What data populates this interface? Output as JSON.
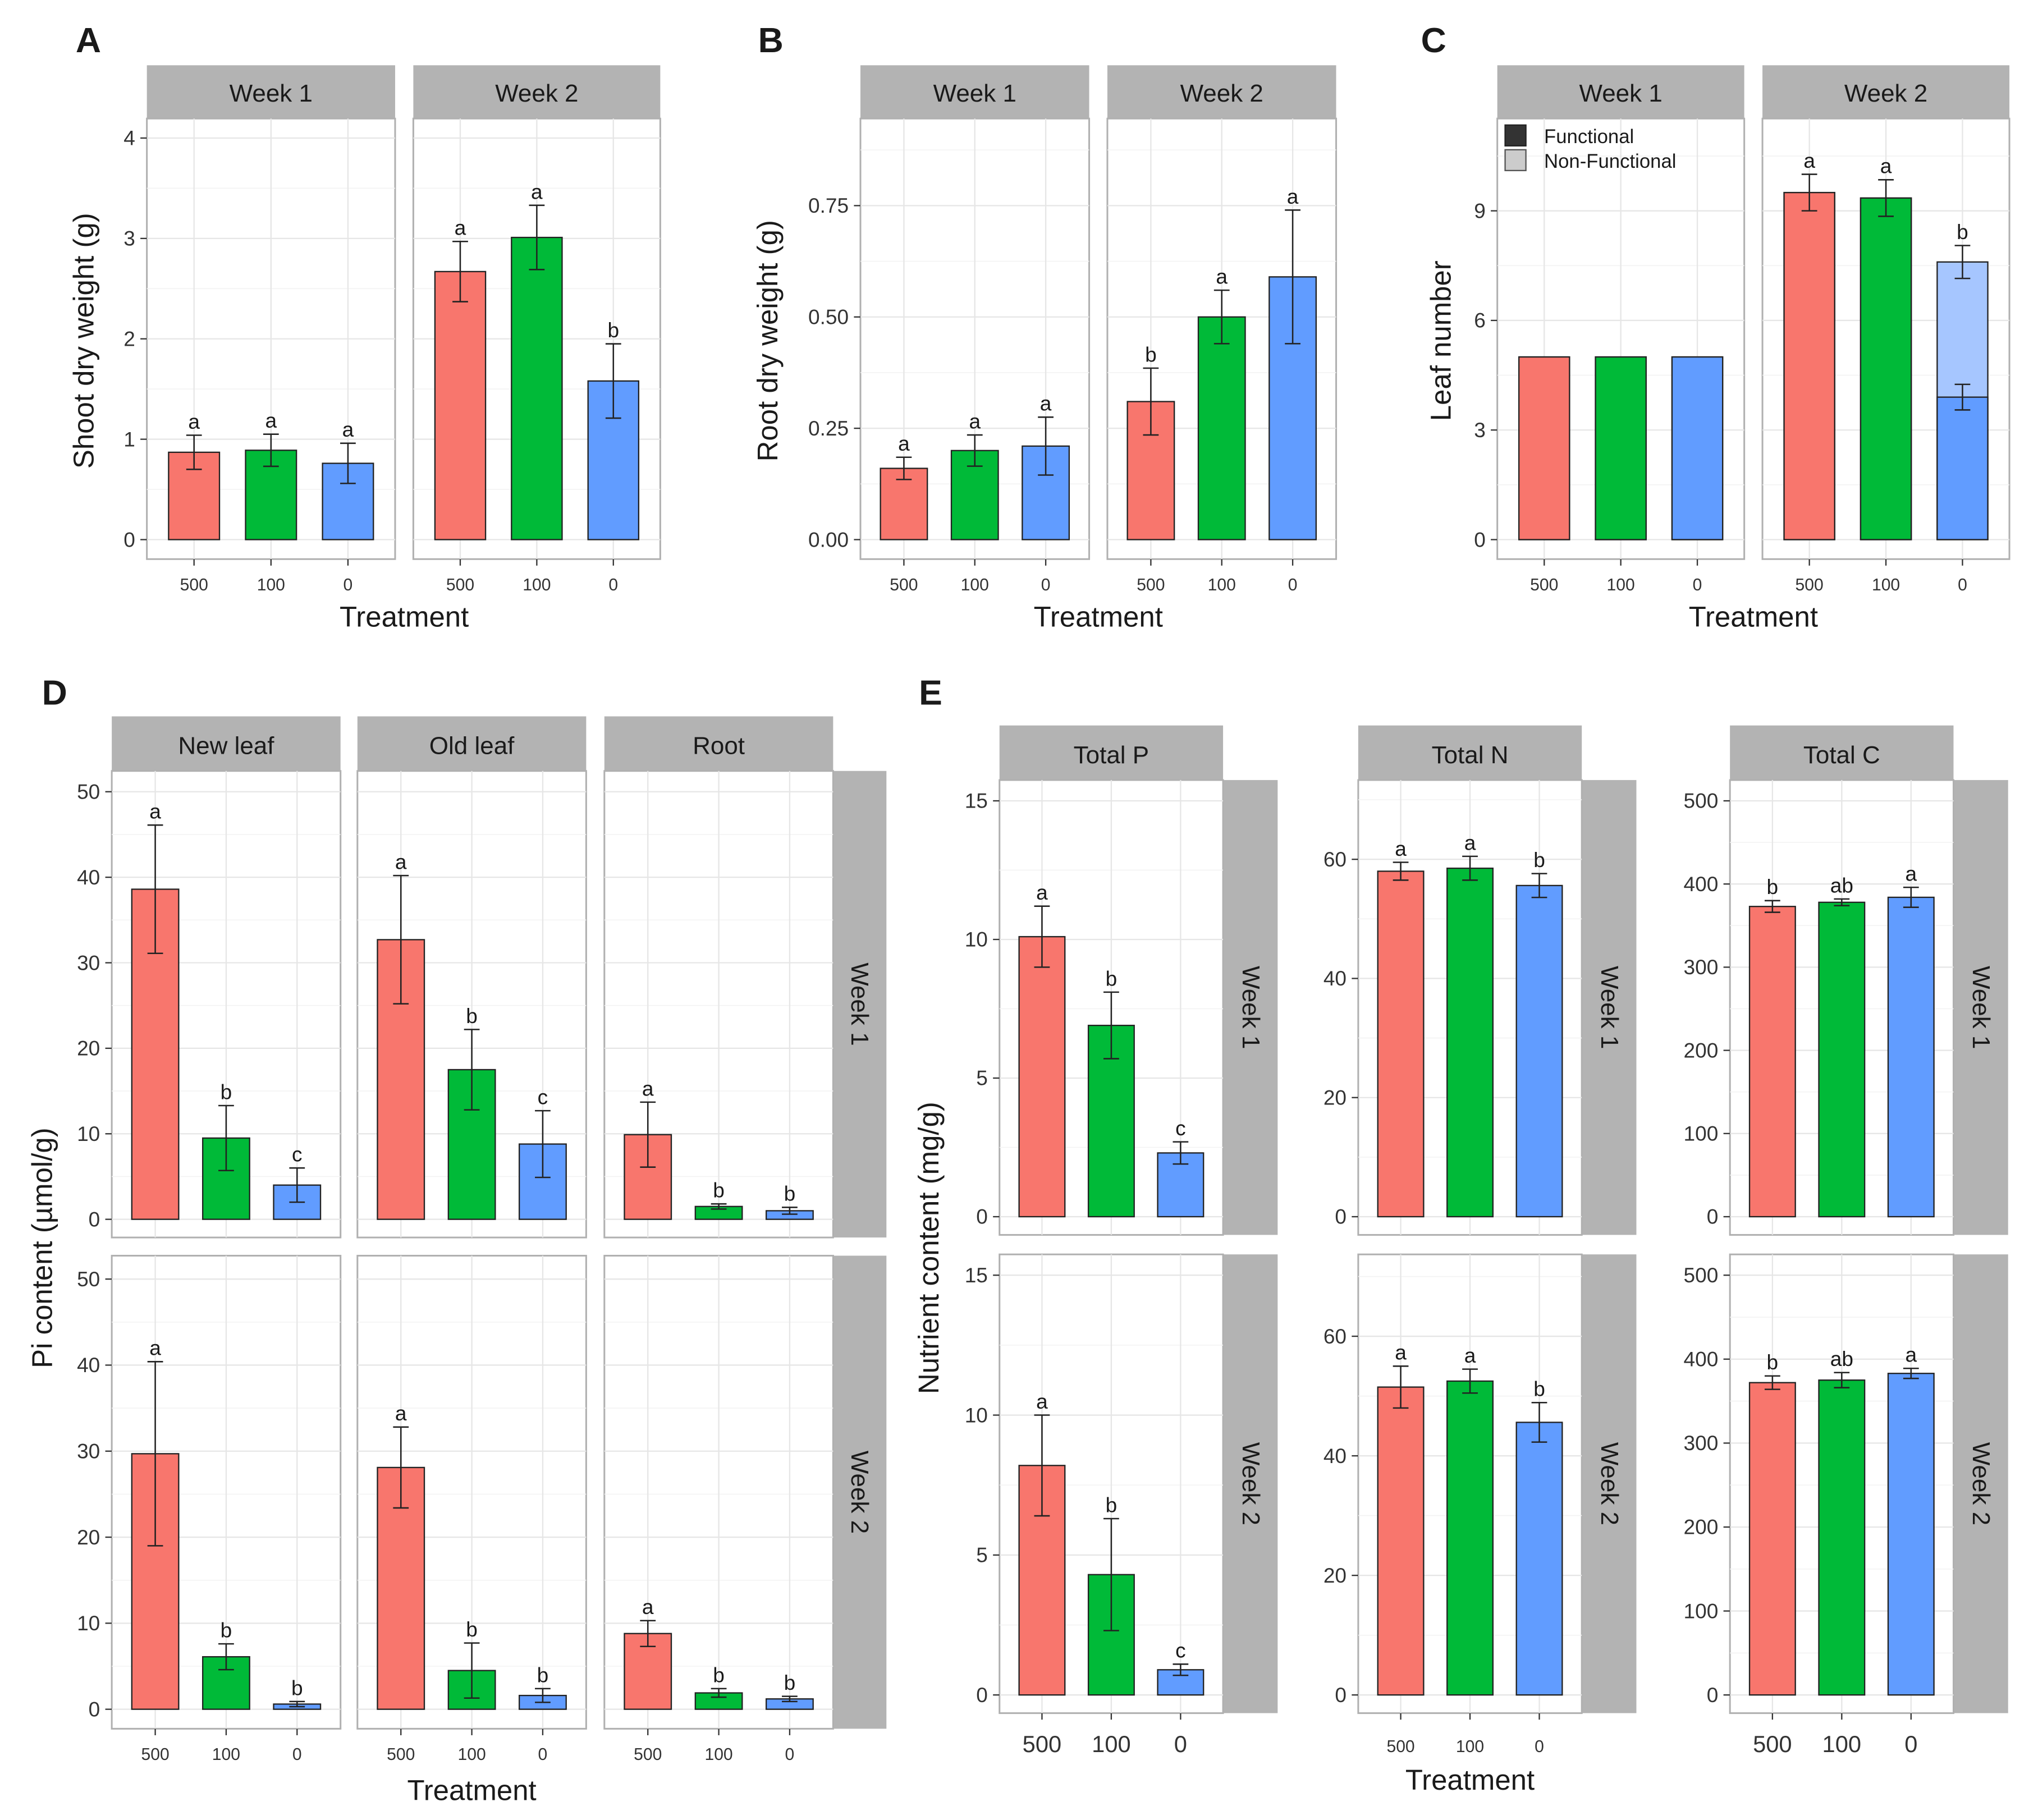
{
  "colors": [
    "#F8766D",
    "#00BA38",
    "#619CFF"
  ],
  "nonfunctional_color": "#A6C6FF",
  "chart_data": [
    {
      "panel": "A",
      "type": "bar",
      "ylabel": "Shoot dry weight (g)",
      "xlabel": "Treatment",
      "categories": [
        "500",
        "100",
        "0"
      ],
      "ylim": [
        0,
        4.1
      ],
      "yticks": [
        0,
        1,
        2,
        3,
        4
      ],
      "ytick_labels": [
        "0",
        "1",
        "2",
        "3",
        "4"
      ],
      "facets": [
        {
          "label": "Week 1",
          "values": [
            0.87,
            0.89,
            0.76
          ],
          "errors": [
            0.17,
            0.16,
            0.2
          ],
          "letters": [
            "a",
            "a",
            "a"
          ]
        },
        {
          "label": "Week 2",
          "values": [
            2.67,
            3.01,
            1.58
          ],
          "errors": [
            0.3,
            0.32,
            0.37
          ],
          "letters": [
            "a",
            "a",
            "b"
          ]
        }
      ]
    },
    {
      "panel": "B",
      "type": "bar",
      "ylabel": "Root dry weight (g)",
      "xlabel": "Treatment",
      "categories": [
        "500",
        "100",
        "0"
      ],
      "ylim": [
        0,
        0.95
      ],
      "yticks": [
        0,
        0.25,
        0.5,
        0.75
      ],
      "ytick_labels": [
        "0.00",
        "0.25",
        "0.50",
        "0.75"
      ],
      "facets": [
        {
          "label": "Week 1",
          "values": [
            0.16,
            0.2,
            0.21
          ],
          "errors": [
            0.025,
            0.035,
            0.065
          ],
          "letters": [
            "a",
            "a",
            "a"
          ]
        },
        {
          "label": "Week 2",
          "values": [
            0.31,
            0.5,
            0.59
          ],
          "errors": [
            0.075,
            0.06,
            0.15
          ],
          "letters": [
            "b",
            "a",
            "a"
          ]
        }
      ]
    },
    {
      "panel": "C",
      "type": "stacked-bar",
      "ylabel": "Leaf number",
      "xlabel": "Treatment",
      "categories": [
        "500",
        "100",
        "0"
      ],
      "ylim": [
        0,
        11.5
      ],
      "yticks": [
        0,
        3,
        6,
        9
      ],
      "ytick_labels": [
        "0",
        "3",
        "6",
        "9"
      ],
      "legend": {
        "placement": "top-left",
        "items": [
          "Functional",
          "Non-Functional"
        ]
      },
      "facets": [
        {
          "label": "Week 1",
          "values": [
            5,
            5,
            5
          ],
          "errors": [
            0,
            0,
            0
          ],
          "letters": [
            "",
            "",
            ""
          ],
          "functional": [
            5,
            5,
            5
          ],
          "functional_errors": [
            0,
            0,
            0
          ]
        },
        {
          "label": "Week 2",
          "values": [
            9.5,
            9.35,
            7.6
          ],
          "errors": [
            0.5,
            0.5,
            0.45
          ],
          "letters": [
            "a",
            "a",
            "b"
          ],
          "functional": [
            9.5,
            9.35,
            3.9
          ],
          "functional_errors": [
            0,
            0,
            0.35
          ]
        }
      ]
    },
    {
      "panel": "D",
      "type": "bar",
      "ylabel": "Pi content (µmol/g)",
      "xlabel": "Treatment",
      "categories": [
        "500",
        "100",
        "0"
      ],
      "ylim": [
        0,
        52
      ],
      "yticks": [
        0,
        10,
        20,
        30,
        40,
        50
      ],
      "ytick_labels": [
        "0",
        "10",
        "20",
        "30",
        "40",
        "50"
      ],
      "cols": [
        "New leaf",
        "Old leaf",
        "Root"
      ],
      "rows": [
        {
          "label": "Week 1",
          "cells": [
            {
              "values": [
                38.6,
                9.5,
                4.0
              ],
              "errors": [
                7.5,
                3.8,
                2.0
              ],
              "letters": [
                "a",
                "b",
                "c"
              ]
            },
            {
              "values": [
                32.7,
                17.5,
                8.8
              ],
              "errors": [
                7.5,
                4.7,
                3.9
              ],
              "letters": [
                "a",
                "b",
                "c"
              ]
            },
            {
              "values": [
                9.9,
                1.5,
                1.0
              ],
              "errors": [
                3.8,
                0.3,
                0.4
              ],
              "letters": [
                "a",
                "b",
                "b"
              ]
            }
          ]
        },
        {
          "label": "Week 2",
          "cells": [
            {
              "values": [
                29.7,
                6.1,
                0.6
              ],
              "errors": [
                10.7,
                1.5,
                0.3
              ],
              "letters": [
                "a",
                "b",
                "b"
              ]
            },
            {
              "values": [
                28.1,
                4.5,
                1.6
              ],
              "errors": [
                4.7,
                3.2,
                0.8
              ],
              "letters": [
                "a",
                "b",
                "b"
              ]
            },
            {
              "values": [
                8.8,
                1.9,
                1.2
              ],
              "errors": [
                1.5,
                0.5,
                0.3
              ],
              "letters": [
                "a",
                "b",
                "b"
              ]
            }
          ]
        }
      ]
    },
    {
      "panel": "E",
      "type": "bar",
      "ylabel": "Nutrient content (mg/g)",
      "xlabel": "Treatment",
      "categories": [
        "500",
        "100",
        "0"
      ],
      "cols": [
        "Total P",
        "Total N",
        "Total C"
      ],
      "col_axes": [
        {
          "ylim": [
            0,
            16
          ],
          "yticks": [
            0,
            5,
            10,
            15
          ],
          "ytick_labels": [
            "0",
            "5",
            "10",
            "15"
          ]
        },
        {
          "ylim": [
            0,
            72
          ],
          "yticks": [
            0,
            20,
            40,
            60
          ],
          "ytick_labels": [
            "0",
            "20",
            "40",
            "60"
          ]
        },
        {
          "ylim": [
            0,
            520
          ],
          "yticks": [
            0,
            100,
            200,
            300,
            400,
            500
          ],
          "ytick_labels": [
            "0",
            "100",
            "200",
            "300",
            "400",
            "500"
          ]
        }
      ],
      "rows": [
        {
          "label": "Week 1",
          "cells": [
            {
              "values": [
                10.1,
                6.9,
                2.3
              ],
              "errors": [
                1.1,
                1.2,
                0.4
              ],
              "letters": [
                "a",
                "b",
                "c"
              ]
            },
            {
              "values": [
                58.0,
                58.5,
                55.6
              ],
              "errors": [
                1.5,
                2.0,
                2.0
              ],
              "letters": [
                "a",
                "a",
                "b"
              ]
            },
            {
              "values": [
                373,
                378,
                384
              ],
              "errors": [
                7,
                4,
                12
              ],
              "letters": [
                "b",
                "ab",
                "a"
              ]
            }
          ]
        },
        {
          "label": "Week 2",
          "cells": [
            {
              "values": [
                8.2,
                4.3,
                0.9
              ],
              "errors": [
                1.8,
                2.0,
                0.2
              ],
              "letters": [
                "a",
                "b",
                "c"
              ]
            },
            {
              "values": [
                51.5,
                52.5,
                45.6
              ],
              "errors": [
                3.5,
                2.0,
                3.3
              ],
              "letters": [
                "a",
                "a",
                "b"
              ]
            },
            {
              "values": [
                372,
                375,
                383
              ],
              "errors": [
                8,
                9,
                6
              ],
              "letters": [
                "b",
                "ab",
                "a"
              ]
            }
          ]
        }
      ]
    }
  ]
}
